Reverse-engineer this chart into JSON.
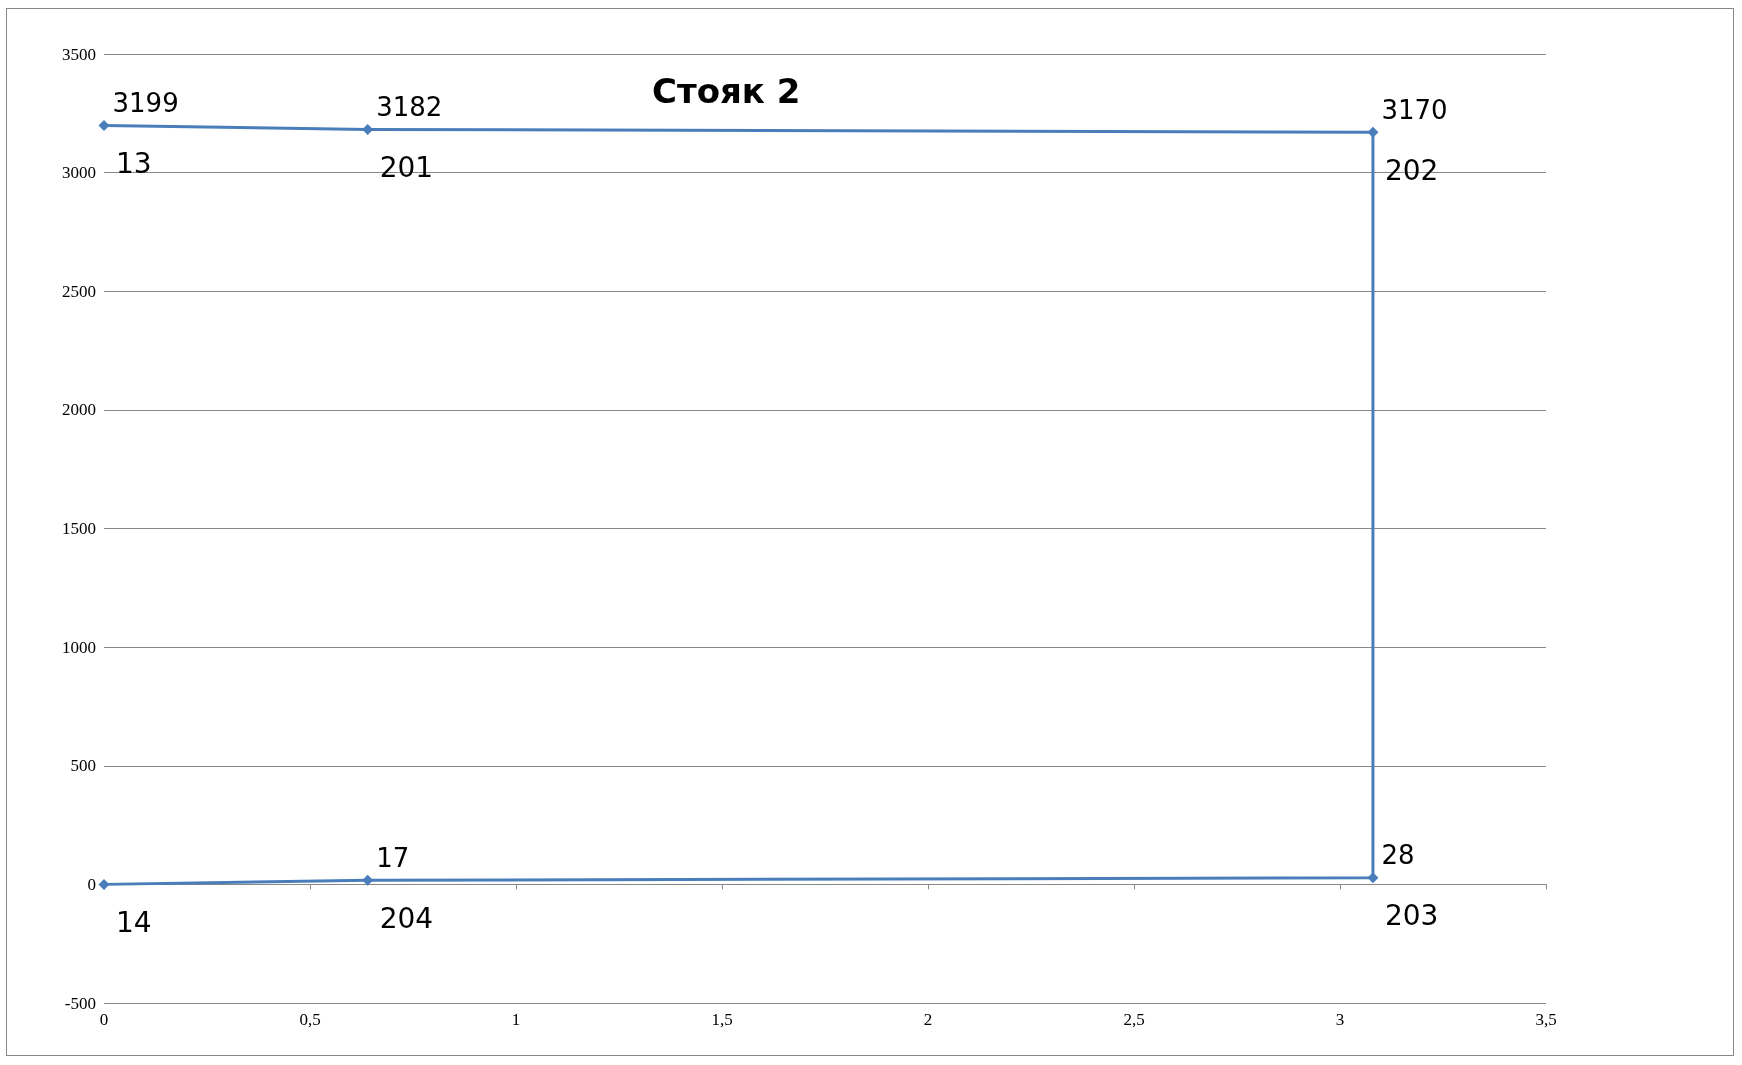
{
  "chart_data": {
    "type": "line",
    "title": "Стояк 2",
    "series": [
      {
        "color": "#4a7ebb",
        "x": [
          0,
          0.64,
          3.08,
          3.08,
          0.64,
          0
        ],
        "values": [
          3199,
          3182,
          3170,
          28,
          17,
          0
        ],
        "value_labels": [
          "3199",
          "3182",
          "3170",
          "28",
          "17",
          null
        ]
      }
    ],
    "annotations": [
      {
        "text": "13",
        "x": 0,
        "y": 3199
      },
      {
        "text": "201",
        "x": 0.64,
        "y": 3182
      },
      {
        "text": "202",
        "x": 3.08,
        "y": 3170
      },
      {
        "text": "203",
        "x": 3.08,
        "y": 28
      },
      {
        "text": "204",
        "x": 0.64,
        "y": 17
      },
      {
        "text": "14",
        "x": 0,
        "y": 0
      }
    ],
    "xlim": [
      0,
      3.5
    ],
    "xticks": [
      0,
      {
        "value": 0.5,
        "label": "0,5"
      },
      1,
      {
        "value": 1.5,
        "label": "1,5"
      },
      2,
      {
        "value": 2.5,
        "label": "2,5"
      },
      3,
      {
        "value": 3.5,
        "label": "3,5"
      }
    ],
    "ylim": [
      -500,
      3500
    ],
    "yticks": [
      -500,
      0,
      500,
      1000,
      1500,
      2000,
      2500,
      3000,
      3500
    ],
    "grid": "y",
    "marker": "diamond",
    "line_style": "solid"
  }
}
